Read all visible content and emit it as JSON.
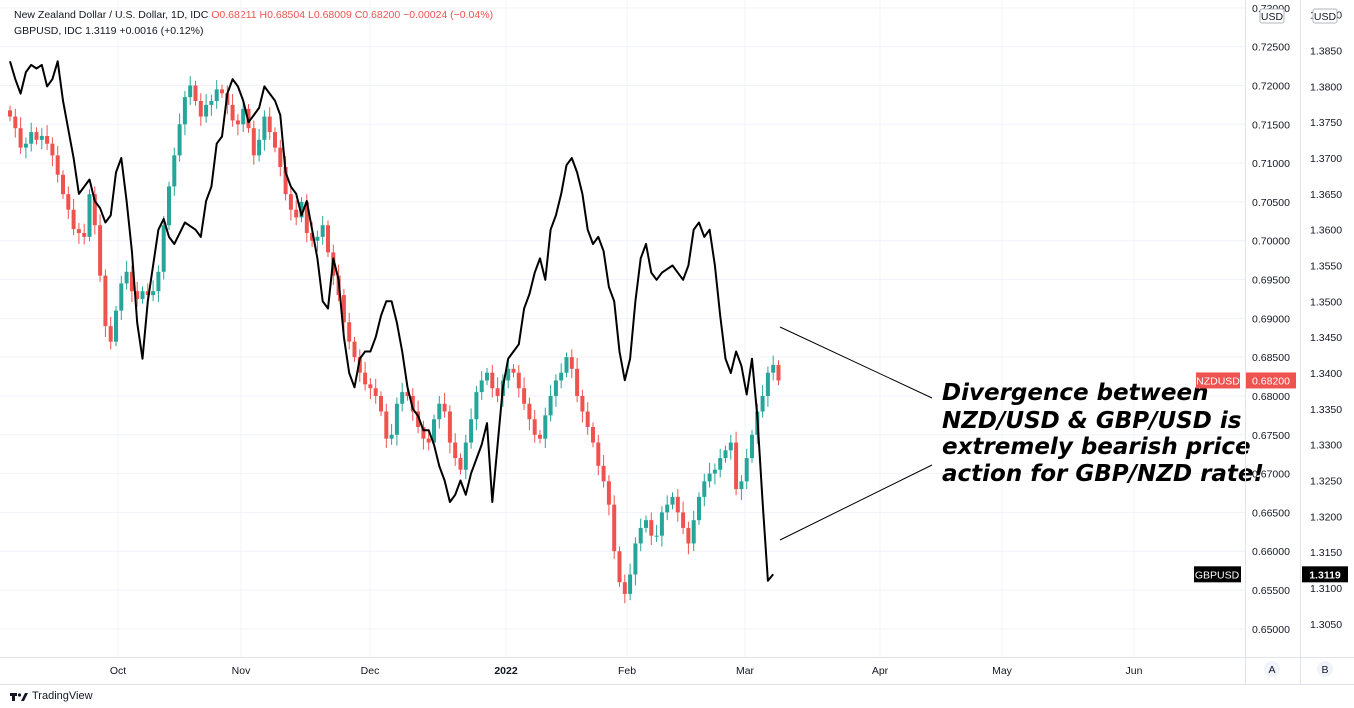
{
  "legend": {
    "line1_title": "New Zealand Dollar / U.S. Dollar, 1D, IDC",
    "line1_o": "O0.68211",
    "line1_h": "H0.68504",
    "line1_l": "L0.68009",
    "line1_c": "C0.68200",
    "line1_chg": "−0.00024 (−0.04%)",
    "line2": "GBPUSD, IDC  1.3119  +0.0016 (+0.12%)"
  },
  "axes": {
    "left_currency": "USD",
    "right_currency": "USD",
    "scale_a": "A",
    "scale_b": "B"
  },
  "footer": {
    "brand": "TradingView"
  },
  "chart_data": {
    "type": "candlestick+line",
    "x_labels": [
      "Oct",
      "Nov",
      "Dec",
      "2022",
      "Feb",
      "Mar",
      "Apr",
      "May",
      "Jun"
    ],
    "nzdusd": {
      "name": "NZDUSD",
      "last": "0.68200",
      "axis_ticks": [
        "0.73000",
        "0.72500",
        "0.72000",
        "0.71500",
        "0.71000",
        "0.70500",
        "0.70000",
        "0.69500",
        "0.69000",
        "0.68500",
        "0.68000",
        "0.67500",
        "0.67000",
        "0.66500",
        "0.66000",
        "0.65500",
        "0.65000"
      ],
      "ylim": [
        0.6465,
        0.7305
      ],
      "closes": [
        0.716,
        0.7145,
        0.712,
        0.7125,
        0.714,
        0.713,
        0.7135,
        0.7125,
        0.711,
        0.7085,
        0.706,
        0.704,
        0.7015,
        0.701,
        0.7005,
        0.706,
        0.702,
        0.6955,
        0.689,
        0.687,
        0.691,
        0.6945,
        0.696,
        0.6935,
        0.6925,
        0.6935,
        0.693,
        0.6935,
        0.696,
        0.702,
        0.707,
        0.711,
        0.715,
        0.7185,
        0.72,
        0.718,
        0.716,
        0.7175,
        0.718,
        0.7195,
        0.719,
        0.7175,
        0.7155,
        0.715,
        0.717,
        0.7145,
        0.711,
        0.713,
        0.716,
        0.714,
        0.712,
        0.7095,
        0.706,
        0.704,
        0.703,
        0.705,
        0.701,
        0.7,
        0.7005,
        0.702,
        0.6985,
        0.6955,
        0.693,
        0.6895,
        0.687,
        0.685,
        0.683,
        0.6815,
        0.681,
        0.68,
        0.678,
        0.6745,
        0.675,
        0.679,
        0.6805,
        0.68,
        0.678,
        0.676,
        0.6745,
        0.674,
        0.677,
        0.679,
        0.678,
        0.674,
        0.672,
        0.6705,
        0.674,
        0.677,
        0.6805,
        0.682,
        0.683,
        0.681,
        0.68,
        0.682,
        0.6835,
        0.683,
        0.681,
        0.679,
        0.677,
        0.675,
        0.6745,
        0.6775,
        0.68,
        0.682,
        0.683,
        0.685,
        0.6835,
        0.68,
        0.678,
        0.676,
        0.674,
        0.671,
        0.669,
        0.666,
        0.66,
        0.656,
        0.6545,
        0.657,
        0.661,
        0.663,
        0.664,
        0.662,
        0.662,
        0.665,
        0.666,
        0.667,
        0.665,
        0.663,
        0.661,
        0.664,
        0.667,
        0.669,
        0.67,
        0.6705,
        0.672,
        0.673,
        0.674,
        0.668,
        0.669,
        0.672,
        0.675,
        0.678,
        0.68,
        0.683,
        0.684,
        0.682
      ]
    },
    "gbpusd": {
      "name": "GBPUSD",
      "last": "1.3119",
      "axis_ticks": [
        "1.3900",
        "1.3850",
        "1.3800",
        "1.3750",
        "1.3700",
        "1.3650",
        "1.3600",
        "1.3550",
        "1.3500",
        "1.3450",
        "1.3400",
        "1.3350",
        "1.3300",
        "1.3250",
        "1.3200",
        "1.3150",
        "1.3100",
        "1.3050"
      ],
      "ylim": [
        1.3005,
        1.3915
      ],
      "closes": [
        1.3835,
        1.381,
        1.379,
        1.382,
        1.383,
        1.3825,
        1.383,
        1.38,
        1.381,
        1.3835,
        1.378,
        1.374,
        1.37,
        1.365,
        1.366,
        1.367,
        1.364,
        1.363,
        1.361,
        1.362,
        1.368,
        1.37,
        1.364,
        1.357,
        1.347,
        1.342,
        1.35,
        1.355,
        1.36,
        1.3615,
        1.359,
        1.358,
        1.3595,
        1.361,
        1.3605,
        1.36,
        1.359,
        1.364,
        1.366,
        1.372,
        1.373,
        1.379,
        1.381,
        1.38,
        1.378,
        1.375,
        1.376,
        1.377,
        1.38,
        1.379,
        1.378,
        1.376,
        1.368,
        1.366,
        1.365,
        1.362,
        1.364,
        1.36,
        1.356,
        1.35,
        1.349,
        1.356,
        1.353,
        1.345,
        1.34,
        1.338,
        1.342,
        1.343,
        1.343,
        1.345,
        1.348,
        1.35,
        1.35,
        1.347,
        1.343,
        1.338,
        1.335,
        1.334,
        1.332,
        1.332,
        1.33,
        1.327,
        1.325,
        1.322,
        1.323,
        1.325,
        1.323,
        1.326,
        1.328,
        1.33,
        1.333,
        1.322,
        1.33,
        1.338,
        1.342,
        1.343,
        1.344,
        1.349,
        1.351,
        1.354,
        1.356,
        1.353,
        1.36,
        1.362,
        1.365,
        1.369,
        1.37,
        1.368,
        1.365,
        1.36,
        1.358,
        1.359,
        1.357,
        1.352,
        1.35,
        1.343,
        1.339,
        1.342,
        1.35,
        1.356,
        1.358,
        1.354,
        1.353,
        1.354,
        1.3545,
        1.355,
        1.354,
        1.353,
        1.355,
        1.36,
        1.361,
        1.359,
        1.36,
        1.355,
        1.348,
        1.342,
        1.34,
        1.343,
        1.341,
        1.337,
        1.342,
        1.334,
        1.322,
        1.311,
        1.3119
      ]
    },
    "annotation_lines": [
      "Divergence between",
      "NZD/USD & GBP/USD is",
      "extremely bearish price",
      "action for GBP/NZD rate!"
    ]
  },
  "colors": {
    "up": "#26a69a",
    "down": "#ef5350",
    "line": "#000000",
    "grid": "#f0f3fa",
    "nzd_tag": "#ef5350",
    "gbp_tag": "#000000"
  }
}
